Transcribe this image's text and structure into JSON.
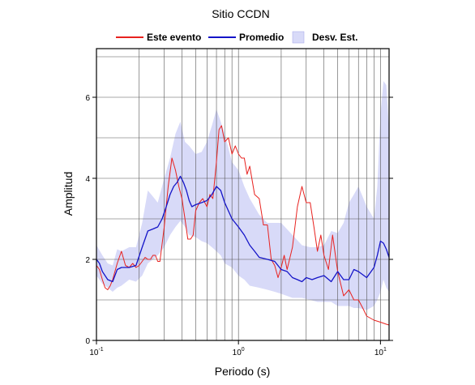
{
  "chart_data": {
    "type": "line",
    "title": "Sitio CCDN",
    "xlabel": "Periodo (s)",
    "ylabel": "Amplitud",
    "x_scale": "log",
    "xlim": [
      0.1,
      11.5
    ],
    "ylim": [
      0,
      7.2
    ],
    "grid": true,
    "legend_position": "top",
    "x_ticks": [
      {
        "value": 0.1,
        "base": "10",
        "exp": "-1"
      },
      {
        "value": 1,
        "base": "10",
        "exp": "0"
      },
      {
        "value": 10,
        "base": "10",
        "exp": "1"
      }
    ],
    "y_ticks": [
      {
        "value": 0,
        "label": "0"
      },
      {
        "value": 2,
        "label": "2"
      },
      {
        "value": 4,
        "label": "4"
      },
      {
        "value": 6,
        "label": "6"
      }
    ],
    "legend": [
      {
        "label": "Este evento",
        "kind": "line",
        "color": "#e8221f"
      },
      {
        "label": "Promedio",
        "kind": "line",
        "color": "#1414c8"
      },
      {
        "label": "Desv. Est.",
        "kind": "band",
        "color": "#d8daf8"
      }
    ],
    "series": [
      {
        "name": "Este evento",
        "color": "#e8221f",
        "x": [
          0.1,
          0.105,
          0.11,
          0.115,
          0.12,
          0.125,
          0.13,
          0.14,
          0.15,
          0.16,
          0.17,
          0.18,
          0.19,
          0.2,
          0.21,
          0.22,
          0.23,
          0.24,
          0.25,
          0.26,
          0.27,
          0.28,
          0.3,
          0.32,
          0.34,
          0.36,
          0.38,
          0.4,
          0.42,
          0.44,
          0.46,
          0.48,
          0.5,
          0.53,
          0.56,
          0.6,
          0.63,
          0.66,
          0.7,
          0.73,
          0.76,
          0.8,
          0.85,
          0.9,
          0.95,
          1.0,
          1.05,
          1.1,
          1.15,
          1.2,
          1.3,
          1.4,
          1.5,
          1.6,
          1.7,
          1.8,
          1.9,
          2.0,
          2.1,
          2.2,
          2.4,
          2.6,
          2.8,
          3.0,
          3.2,
          3.4,
          3.6,
          3.8,
          4.0,
          4.3,
          4.6,
          5.0,
          5.5,
          6.0,
          6.5,
          7.0,
          7.5,
          8.0,
          9.0,
          10.0,
          11.0,
          11.5
        ],
        "y": [
          1.85,
          1.75,
          1.5,
          1.3,
          1.25,
          1.35,
          1.5,
          1.9,
          2.2,
          1.85,
          1.8,
          1.9,
          1.8,
          1.85,
          1.95,
          2.05,
          2.0,
          2.0,
          2.1,
          2.1,
          1.95,
          1.95,
          2.8,
          3.8,
          4.5,
          4.2,
          3.8,
          3.5,
          3.0,
          2.5,
          2.5,
          2.6,
          3.2,
          3.4,
          3.5,
          3.3,
          3.6,
          3.5,
          4.4,
          5.2,
          5.3,
          4.9,
          5.0,
          4.6,
          4.8,
          4.6,
          4.5,
          4.5,
          4.1,
          4.3,
          3.6,
          3.5,
          2.85,
          2.85,
          2.0,
          1.85,
          1.55,
          1.8,
          2.1,
          1.75,
          2.3,
          3.3,
          3.8,
          3.4,
          3.4,
          2.8,
          2.2,
          2.6,
          2.1,
          1.75,
          2.6,
          1.7,
          1.1,
          1.25,
          1.0,
          1.0,
          0.8,
          0.6,
          0.5,
          0.45,
          0.4,
          0.38
        ]
      },
      {
        "name": "Promedio",
        "color": "#1414c8",
        "x": [
          0.1,
          0.105,
          0.11,
          0.12,
          0.13,
          0.14,
          0.15,
          0.17,
          0.19,
          0.21,
          0.23,
          0.25,
          0.27,
          0.29,
          0.31,
          0.33,
          0.35,
          0.37,
          0.39,
          0.41,
          0.43,
          0.45,
          0.47,
          0.5,
          0.55,
          0.6,
          0.65,
          0.7,
          0.75,
          0.8,
          0.9,
          1.0,
          1.1,
          1.2,
          1.3,
          1.4,
          1.6,
          1.8,
          2.0,
          2.2,
          2.4,
          2.6,
          2.8,
          3.0,
          3.3,
          3.6,
          4.0,
          4.5,
          5.0,
          5.5,
          6.0,
          6.5,
          7.0,
          8.0,
          9.0,
          9.5,
          10.0,
          10.5,
          11.0,
          11.5
        ],
        "y": [
          2.0,
          1.9,
          1.7,
          1.5,
          1.45,
          1.75,
          1.8,
          1.8,
          1.85,
          2.3,
          2.7,
          2.75,
          2.8,
          3.0,
          3.3,
          3.6,
          3.8,
          3.9,
          4.05,
          3.9,
          3.7,
          3.45,
          3.3,
          3.35,
          3.4,
          3.45,
          3.6,
          3.8,
          3.7,
          3.4,
          3.0,
          2.8,
          2.6,
          2.35,
          2.2,
          2.05,
          2.0,
          1.95,
          1.75,
          1.7,
          1.55,
          1.5,
          1.45,
          1.55,
          1.5,
          1.55,
          1.6,
          1.45,
          1.7,
          1.5,
          1.5,
          1.75,
          1.7,
          1.55,
          1.8,
          2.1,
          2.45,
          2.4,
          2.25,
          2.05
        ]
      }
    ],
    "band": {
      "name": "Desv. Est.",
      "color": "#d8daf8",
      "x": [
        0.1,
        0.11,
        0.12,
        0.13,
        0.14,
        0.15,
        0.17,
        0.19,
        0.21,
        0.23,
        0.25,
        0.27,
        0.3,
        0.33,
        0.36,
        0.39,
        0.42,
        0.45,
        0.5,
        0.55,
        0.6,
        0.65,
        0.7,
        0.75,
        0.8,
        0.9,
        1.0,
        1.1,
        1.2,
        1.4,
        1.6,
        1.8,
        2.0,
        2.4,
        2.8,
        3.2,
        3.6,
        4.0,
        4.5,
        5.0,
        5.5,
        6.0,
        6.5,
        7.0,
        8.0,
        9.0,
        9.5,
        10.0,
        10.5,
        11.0,
        11.5
      ],
      "upper": [
        2.35,
        2.1,
        1.9,
        1.85,
        2.25,
        2.2,
        2.3,
        2.3,
        2.9,
        3.7,
        3.55,
        3.4,
        4.0,
        4.5,
        5.1,
        5.4,
        4.9,
        4.8,
        4.6,
        4.65,
        4.9,
        5.3,
        5.7,
        5.4,
        5.1,
        4.4,
        4.2,
        3.8,
        3.5,
        3.1,
        2.9,
        2.9,
        2.9,
        2.6,
        2.35,
        2.3,
        2.3,
        2.35,
        2.7,
        2.65,
        2.9,
        3.4,
        3.6,
        3.8,
        3.3,
        3.0,
        3.8,
        5.6,
        6.4,
        6.3,
        5.2
      ],
      "lower": [
        1.6,
        1.4,
        1.3,
        1.2,
        1.3,
        1.35,
        1.5,
        1.45,
        1.6,
        1.9,
        2.0,
        2.1,
        2.3,
        2.6,
        2.8,
        2.95,
        2.8,
        2.6,
        2.55,
        2.45,
        2.4,
        2.3,
        2.2,
        2.1,
        1.9,
        1.8,
        1.6,
        1.5,
        1.35,
        1.3,
        1.25,
        1.2,
        1.15,
        1.05,
        1.05,
        1.0,
        0.95,
        0.95,
        0.95,
        0.85,
        0.85,
        0.85,
        0.8,
        0.8,
        0.75,
        0.85,
        1.0,
        1.2,
        1.5,
        1.3,
        1.2
      ]
    }
  }
}
